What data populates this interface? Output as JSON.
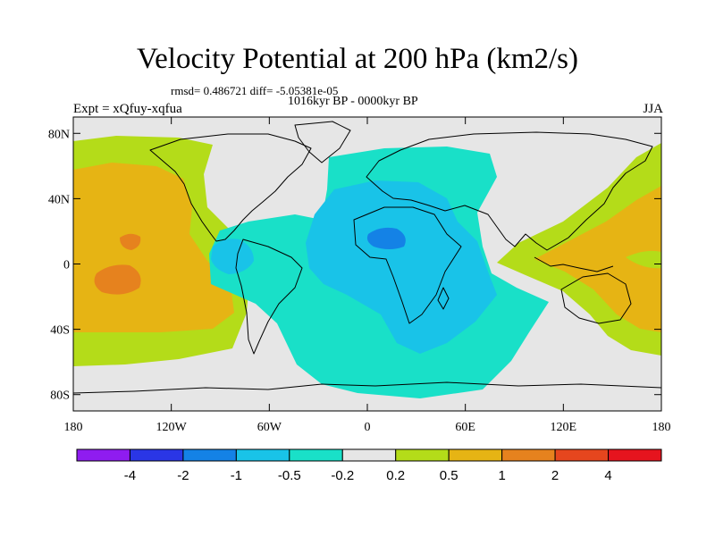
{
  "header": {
    "title": "Velocity Potential at 200 hPa (km2/s)",
    "stats": "rmsd= 0.486721 diff= -5.05381e-05",
    "period": "1016kyr BP - 0000kyr BP",
    "experiment": "Expt = xQfuy-xqfua",
    "season": "JJA"
  },
  "map": {
    "projection": "cylindrical equidistant",
    "lon_range": [
      -180,
      180
    ],
    "lat_range": [
      -90,
      90
    ],
    "x_ticks": [
      {
        "lon": -180,
        "label": "180"
      },
      {
        "lon": -120,
        "label": "120W"
      },
      {
        "lon": -60,
        "label": "60W"
      },
      {
        "lon": 0,
        "label": "0"
      },
      {
        "lon": 60,
        "label": "60E"
      },
      {
        "lon": 120,
        "label": "120E"
      },
      {
        "lon": 180,
        "label": "180"
      }
    ],
    "y_ticks": [
      {
        "lat": 80,
        "label": "80N"
      },
      {
        "lat": 40,
        "label": "40N"
      },
      {
        "lat": 0,
        "label": "0"
      },
      {
        "lat": -40,
        "label": "40S"
      },
      {
        "lat": -80,
        "label": "80S"
      }
    ],
    "background_color": "#e6e6e6"
  },
  "colorbar": {
    "colors": [
      "#8f1cf0",
      "#2a36e6",
      "#1482e6",
      "#19c3e8",
      "#19e0c8",
      "#e6e6e6",
      "#b4dc19",
      "#e6b414",
      "#e6821e",
      "#e6461e",
      "#e6141e"
    ],
    "labels": [
      "-4",
      "-2",
      "-1",
      "-0.5",
      "-0.2",
      "0.2",
      "0.5",
      "1",
      "2",
      "4"
    ]
  }
}
